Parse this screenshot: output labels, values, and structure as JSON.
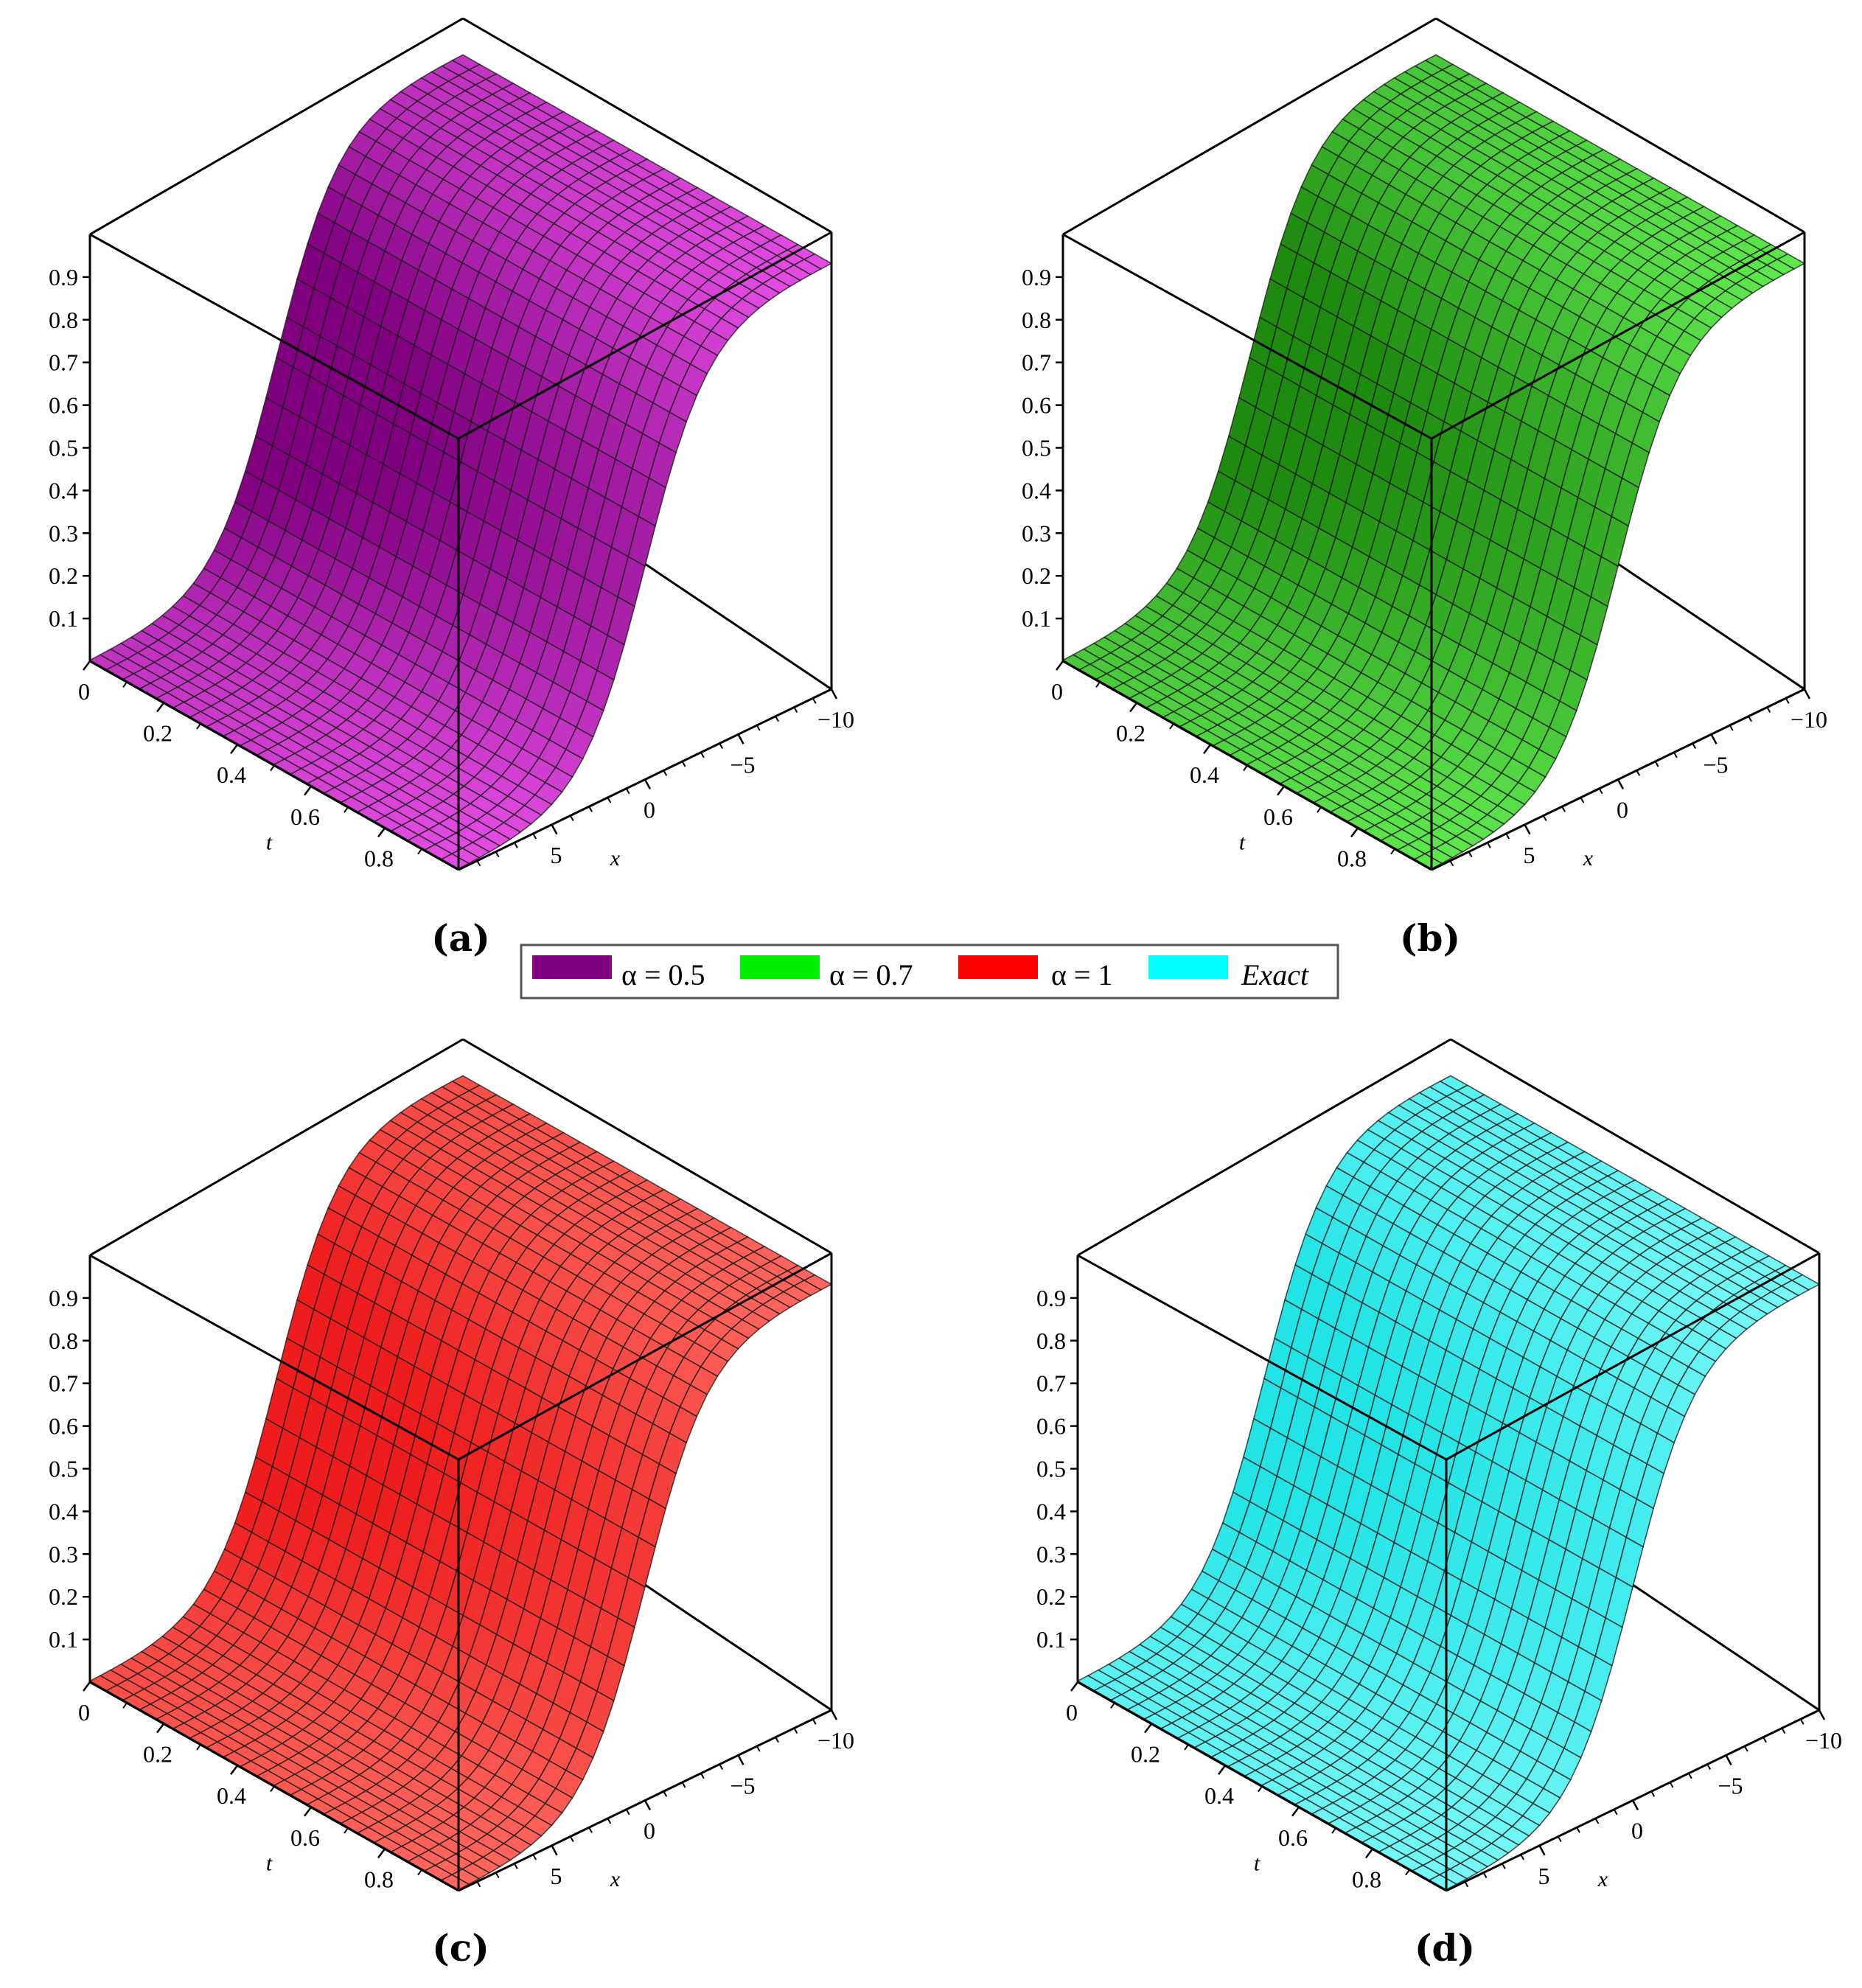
{
  "chart_data": [
    {
      "type": "surface3d",
      "panel_label": "(a)",
      "series_name": "α = 0.5",
      "color": "#800080",
      "light_color": "#ee55ee",
      "xlabel": "x",
      "tlabel": "t",
      "x_range": [
        -10,
        10
      ],
      "t_range": [
        0,
        1
      ],
      "z_range": [
        0,
        1
      ],
      "z_ticks": [
        0.1,
        0.2,
        0.3,
        0.4,
        0.5,
        0.6,
        0.7,
        0.8,
        0.9
      ],
      "t_ticks": [
        0,
        0.2,
        0.4,
        0.6,
        0.8
      ],
      "x_ticks": [
        -10,
        -5,
        0,
        5
      ],
      "z_tick_labels": [
        "0.1",
        "0.2",
        "0.3",
        "0.4",
        "0.5",
        "0.6",
        "0.7",
        "0.8",
        "0.9"
      ],
      "t_tick_labels": [
        "0",
        "0.2",
        "0.4",
        "0.6",
        "0.8"
      ],
      "x_tick_labels": [
        "−10",
        "−5",
        "0",
        "5"
      ],
      "surface_profile": {
        "x": [
          -10,
          -5,
          0,
          5,
          10
        ],
        "z": [
          0.96,
          0.82,
          0.5,
          0.18,
          0.04
        ]
      }
    },
    {
      "type": "surface3d",
      "panel_label": "(b)",
      "series_name": "α = 0.7",
      "color": "#1e8a10",
      "light_color": "#66f255",
      "xlabel": "x",
      "tlabel": "t",
      "x_range": [
        -10,
        10
      ],
      "t_range": [
        0,
        1
      ],
      "z_range": [
        0,
        1
      ],
      "z_ticks": [
        0.1,
        0.2,
        0.3,
        0.4,
        0.5,
        0.6,
        0.7,
        0.8,
        0.9
      ],
      "t_ticks": [
        0,
        0.2,
        0.4,
        0.6,
        0.8
      ],
      "x_ticks": [
        -10,
        -5,
        0,
        5
      ],
      "z_tick_labels": [
        "0.1",
        "0.2",
        "0.3",
        "0.4",
        "0.5",
        "0.6",
        "0.7",
        "0.8",
        "0.9"
      ],
      "t_tick_labels": [
        "0",
        "0.2",
        "0.4",
        "0.6",
        "0.8"
      ],
      "x_tick_labels": [
        "−10",
        "−5",
        "0",
        "5"
      ],
      "surface_profile": {
        "x": [
          -10,
          -5,
          0,
          5,
          10
        ],
        "z": [
          0.96,
          0.82,
          0.5,
          0.18,
          0.04
        ]
      }
    },
    {
      "type": "surface3d",
      "panel_label": "(c)",
      "series_name": "α = 1",
      "color": "#ee1c1c",
      "light_color": "#ff6f66",
      "xlabel": "x",
      "tlabel": "t",
      "x_range": [
        -10,
        10
      ],
      "t_range": [
        0,
        1
      ],
      "z_range": [
        0,
        1
      ],
      "z_ticks": [
        0.1,
        0.2,
        0.3,
        0.4,
        0.5,
        0.6,
        0.7,
        0.8,
        0.9
      ],
      "t_ticks": [
        0,
        0.2,
        0.4,
        0.6,
        0.8
      ],
      "x_ticks": [
        -10,
        -5,
        0,
        5
      ],
      "z_tick_labels": [
        "0.1",
        "0.2",
        "0.3",
        "0.4",
        "0.5",
        "0.6",
        "0.7",
        "0.8",
        "0.9"
      ],
      "t_tick_labels": [
        "0",
        "0.2",
        "0.4",
        "0.6",
        "0.8"
      ],
      "x_tick_labels": [
        "−10",
        "−5",
        "0",
        "5"
      ],
      "surface_profile": {
        "x": [
          -10,
          -5,
          0,
          5,
          10
        ],
        "z": [
          0.96,
          0.82,
          0.5,
          0.18,
          0.04
        ]
      }
    },
    {
      "type": "surface3d",
      "panel_label": "(d)",
      "series_name": "Exact",
      "color": "#22e4e6",
      "light_color": "#7ffaf8",
      "xlabel": "x",
      "tlabel": "t",
      "x_range": [
        -10,
        10
      ],
      "t_range": [
        0,
        1
      ],
      "z_range": [
        0,
        1
      ],
      "z_ticks": [
        0.1,
        0.2,
        0.3,
        0.4,
        0.5,
        0.6,
        0.7,
        0.8,
        0.9
      ],
      "t_ticks": [
        0,
        0.2,
        0.4,
        0.6,
        0.8
      ],
      "x_ticks": [
        -10,
        -5,
        0,
        5
      ],
      "z_tick_labels": [
        "0.1",
        "0.2",
        "0.3",
        "0.4",
        "0.5",
        "0.6",
        "0.7",
        "0.8",
        "0.9"
      ],
      "t_tick_labels": [
        "0",
        "0.2",
        "0.4",
        "0.6",
        "0.8"
      ],
      "x_tick_labels": [
        "−10",
        "−5",
        "0",
        "5"
      ],
      "surface_profile": {
        "x": [
          -10,
          -5,
          0,
          5,
          10
        ],
        "z": [
          0.96,
          0.82,
          0.5,
          0.18,
          0.04
        ]
      }
    }
  ],
  "legend": {
    "items": [
      {
        "label": "α = 0.5",
        "color": "#800080",
        "italic": false
      },
      {
        "label": "α = 0.7",
        "color": "#00ee00",
        "italic": false
      },
      {
        "label": "α = 1",
        "color": "#ff0000",
        "italic": false
      },
      {
        "label": "Exact",
        "color": "#00ffff",
        "italic": true
      }
    ]
  }
}
